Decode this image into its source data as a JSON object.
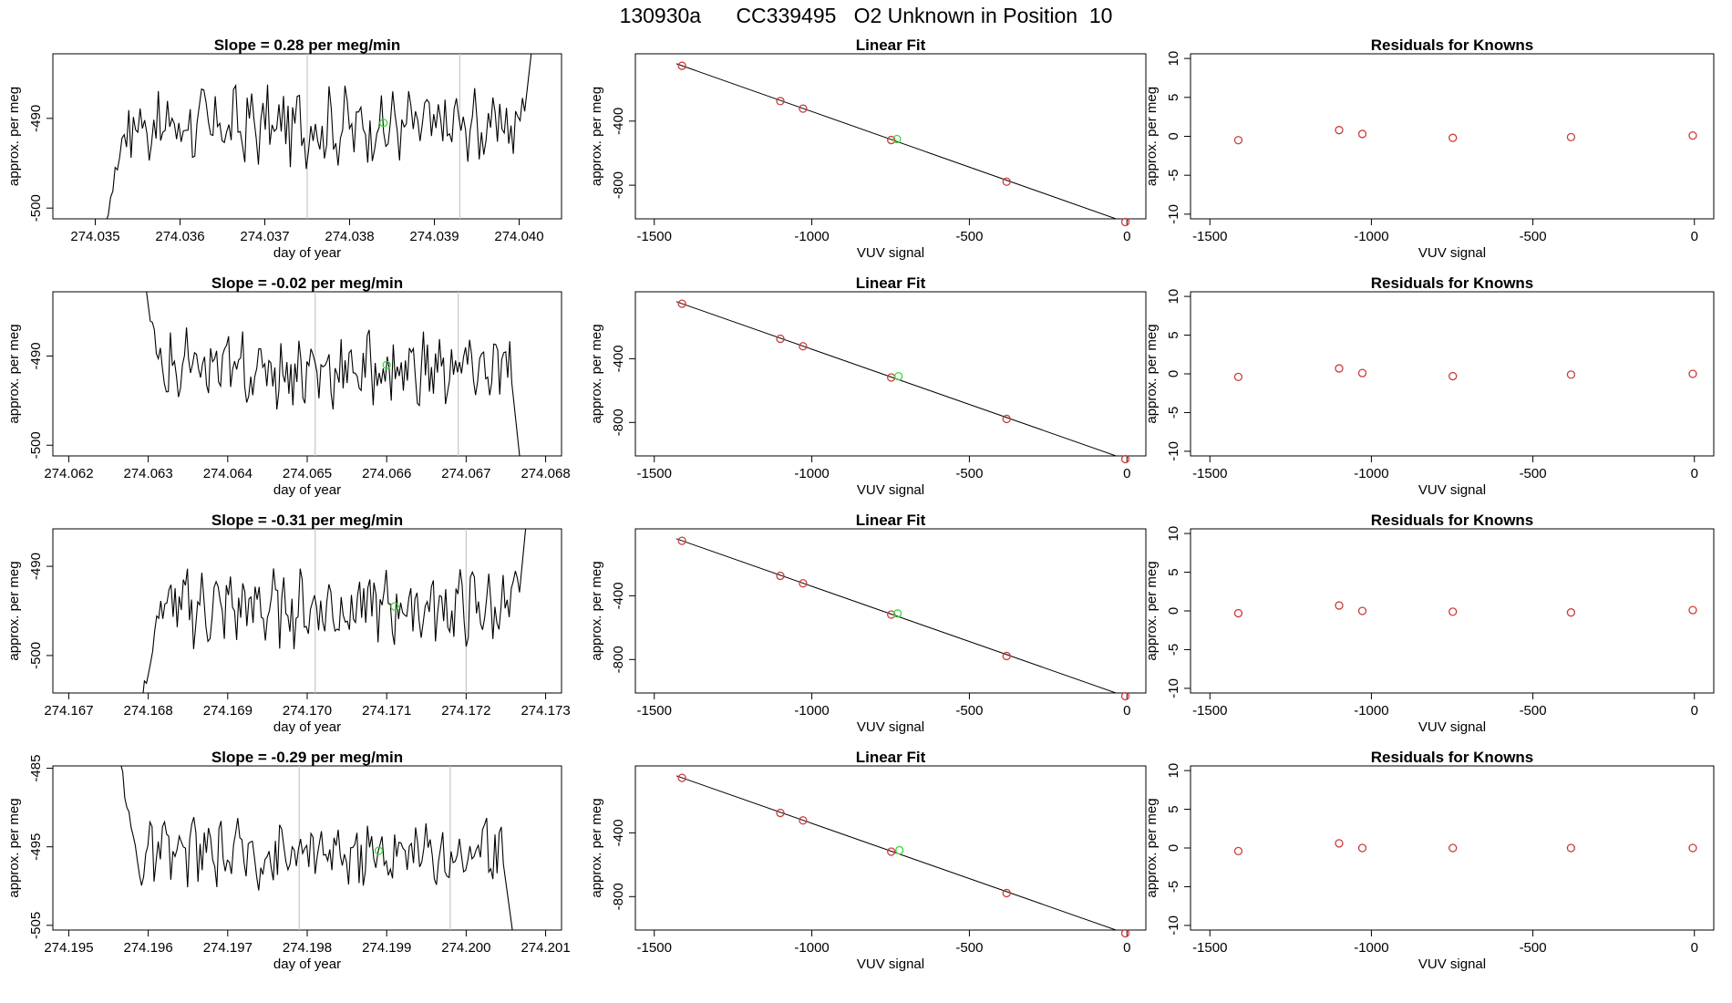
{
  "figure": {
    "title": "130930a      CC339495   O2 Unknown in Position  10"
  },
  "colors": {
    "line": "#000000",
    "known_marker": "#cd3b3b",
    "unknown_marker": "#33dd33",
    "vline": "#c8c8c8"
  },
  "chart_data": [
    {
      "type": "line",
      "panel": "timeseries",
      "row": 0,
      "title": "Slope =  0.28  per meg/min",
      "xlabel": "day of year",
      "ylabel": "approx. per meg",
      "xlim": [
        274.0345,
        274.0405
      ],
      "ylim": [
        -501.2,
        -482.8
      ],
      "xticks": [
        274.035,
        274.036,
        274.037,
        274.038,
        274.039,
        274.04
      ],
      "xtick_labels": [
        "274.035",
        "274.036",
        "274.037",
        "274.038",
        "274.039",
        "274.040"
      ],
      "yticks": [
        -500,
        -490
      ],
      "ytick_labels": [
        "-500",
        "-490"
      ],
      "vlines": [
        274.0375,
        274.0393
      ],
      "unknown_point": {
        "x": 274.0384,
        "y": -490.5
      },
      "series_start": 274.0351,
      "series_end": 274.0402,
      "mean": -490.8,
      "start_level": -502.5,
      "end_level": -478.0
    },
    {
      "type": "scatter",
      "panel": "linear_fit",
      "row": 0,
      "title": "Linear Fit",
      "xlabel": "VUV signal",
      "ylabel": "approx. per meg",
      "xlim": [
        -1560,
        60
      ],
      "ylim": [
        -1010,
        20
      ],
      "xticks": [
        -1500,
        -1000,
        -500,
        0
      ],
      "xtick_labels": [
        "-1500",
        "-1000",
        "-500",
        "0"
      ],
      "yticks": [
        -800,
        -400
      ],
      "ytick_labels": [
        "-800",
        "-400"
      ],
      "knowns": [
        {
          "x": -1412,
          "y": -55
        },
        {
          "x": -1100,
          "y": -275
        },
        {
          "x": -1028,
          "y": -322
        },
        {
          "x": -748,
          "y": -518
        },
        {
          "x": -382,
          "y": -778
        },
        {
          "x": -5,
          "y": -1030
        }
      ],
      "unknown": {
        "x": -730,
        "y": -512
      },
      "fit_line": [
        {
          "x": -1430,
          "y": -42
        },
        {
          "x": 0,
          "y": -1034
        }
      ]
    },
    {
      "type": "scatter",
      "panel": "residuals",
      "row": 0,
      "title": "Residuals for Knowns",
      "xlabel": "VUV signal",
      "ylabel": "approx. per meg",
      "xlim": [
        -1560,
        60
      ],
      "ylim": [
        -10.6,
        10.6
      ],
      "xticks": [
        -1500,
        -1000,
        -500,
        0
      ],
      "xtick_labels": [
        "-1500",
        "-1000",
        "-500",
        "0"
      ],
      "yticks": [
        -10,
        -5,
        0,
        5,
        10
      ],
      "ytick_labels": [
        "-10",
        "-5",
        "0",
        "5",
        "10"
      ],
      "points": [
        {
          "x": -1412,
          "y": -0.5
        },
        {
          "x": -1100,
          "y": 0.8
        },
        {
          "x": -1028,
          "y": 0.3
        },
        {
          "x": -748,
          "y": -0.2
        },
        {
          "x": -382,
          "y": -0.1
        },
        {
          "x": -5,
          "y": 0.1
        }
      ]
    },
    {
      "type": "line",
      "panel": "timeseries",
      "row": 1,
      "title": "Slope =  -0.02  per meg/min",
      "xlabel": "day of year",
      "ylabel": "approx. per meg",
      "xlim": [
        274.0618,
        274.0682
      ],
      "ylim": [
        -501.2,
        -482.8
      ],
      "xticks": [
        274.062,
        274.063,
        274.064,
        274.065,
        274.066,
        274.067,
        274.068
      ],
      "xtick_labels": [
        "274.062",
        "274.063",
        "274.064",
        "274.065",
        "274.066",
        "274.067",
        "274.068"
      ],
      "yticks": [
        -500,
        -490
      ],
      "ytick_labels": [
        "-500",
        "-490"
      ],
      "vlines": [
        274.0651,
        274.0669
      ],
      "unknown_point": {
        "x": 274.066,
        "y": -491.0
      },
      "series_start": 274.0629,
      "series_end": 274.0677,
      "mean": -491.5,
      "start_level": -478.0,
      "end_level": -503.5
    },
    {
      "type": "scatter",
      "panel": "linear_fit",
      "row": 1,
      "title": "Linear Fit",
      "xlabel": "VUV signal",
      "ylabel": "approx. per meg",
      "xlim": [
        -1560,
        60
      ],
      "ylim": [
        -1010,
        20
      ],
      "xticks": [
        -1500,
        -1000,
        -500,
        0
      ],
      "xtick_labels": [
        "-1500",
        "-1000",
        "-500",
        "0"
      ],
      "yticks": [
        -800,
        -400
      ],
      "ytick_labels": [
        "-800",
        "-400"
      ],
      "knowns": [
        {
          "x": -1412,
          "y": -55
        },
        {
          "x": -1100,
          "y": -275
        },
        {
          "x": -1028,
          "y": -322
        },
        {
          "x": -748,
          "y": -518
        },
        {
          "x": -382,
          "y": -778
        },
        {
          "x": -5,
          "y": -1030
        }
      ],
      "unknown": {
        "x": -725,
        "y": -510
      },
      "fit_line": [
        {
          "x": -1430,
          "y": -42
        },
        {
          "x": 0,
          "y": -1034
        }
      ]
    },
    {
      "type": "scatter",
      "panel": "residuals",
      "row": 1,
      "title": "Residuals for Knowns",
      "xlabel": "VUV signal",
      "ylabel": "approx. per meg",
      "xlim": [
        -1560,
        60
      ],
      "ylim": [
        -10.6,
        10.6
      ],
      "xticks": [
        -1500,
        -1000,
        -500,
        0
      ],
      "xtick_labels": [
        "-1500",
        "-1000",
        "-500",
        "0"
      ],
      "yticks": [
        -10,
        -5,
        0,
        5,
        10
      ],
      "ytick_labels": [
        "-10",
        "-5",
        "0",
        "5",
        "10"
      ],
      "points": [
        {
          "x": -1412,
          "y": -0.4
        },
        {
          "x": -1100,
          "y": 0.7
        },
        {
          "x": -1028,
          "y": 0.1
        },
        {
          "x": -748,
          "y": -0.3
        },
        {
          "x": -382,
          "y": -0.1
        },
        {
          "x": -5,
          "y": 0.0
        }
      ]
    },
    {
      "type": "line",
      "panel": "timeseries",
      "row": 2,
      "title": "Slope =  -0.31  per meg/min",
      "xlabel": "day of year",
      "ylabel": "approx. per meg",
      "xlim": [
        274.1668,
        274.1732
      ],
      "ylim": [
        -504.2,
        -485.8
      ],
      "xticks": [
        274.167,
        274.168,
        274.169,
        274.17,
        274.171,
        274.172,
        274.173
      ],
      "xtick_labels": [
        "274.167",
        "274.168",
        "274.169",
        "274.170",
        "274.171",
        "274.172",
        "274.173"
      ],
      "yticks": [
        -500,
        -490
      ],
      "ytick_labels": [
        "-500",
        "-490"
      ],
      "vlines": [
        274.1701,
        274.172
      ],
      "unknown_point": {
        "x": 274.1711,
        "y": -494.5
      },
      "series_start": 274.1679,
      "series_end": 274.1728,
      "mean": -494.6,
      "start_level": -506.0,
      "end_level": -481.0
    },
    {
      "type": "scatter",
      "panel": "linear_fit",
      "row": 2,
      "title": "Linear Fit",
      "xlabel": "VUV signal",
      "ylabel": "approx. per meg",
      "xlim": [
        -1560,
        60
      ],
      "ylim": [
        -1010,
        20
      ],
      "xticks": [
        -1500,
        -1000,
        -500,
        0
      ],
      "xtick_labels": [
        "-1500",
        "-1000",
        "-500",
        "0"
      ],
      "yticks": [
        -800,
        -400
      ],
      "ytick_labels": [
        "-800",
        "-400"
      ],
      "knowns": [
        {
          "x": -1412,
          "y": -55
        },
        {
          "x": -1100,
          "y": -275
        },
        {
          "x": -1028,
          "y": -322
        },
        {
          "x": -748,
          "y": -518
        },
        {
          "x": -382,
          "y": -778
        },
        {
          "x": -5,
          "y": -1030
        }
      ],
      "unknown": {
        "x": -728,
        "y": -511
      },
      "fit_line": [
        {
          "x": -1430,
          "y": -42
        },
        {
          "x": 0,
          "y": -1034
        }
      ]
    },
    {
      "type": "scatter",
      "panel": "residuals",
      "row": 2,
      "title": "Residuals for Knowns",
      "xlabel": "VUV signal",
      "ylabel": "approx. per meg",
      "xlim": [
        -1560,
        60
      ],
      "ylim": [
        -10.6,
        10.6
      ],
      "xticks": [
        -1500,
        -1000,
        -500,
        0
      ],
      "xtick_labels": [
        "-1500",
        "-1000",
        "-500",
        "0"
      ],
      "yticks": [
        -10,
        -5,
        0,
        5,
        10
      ],
      "ytick_labels": [
        "-10",
        "-5",
        "0",
        "5",
        "10"
      ],
      "points": [
        {
          "x": -1412,
          "y": -0.3
        },
        {
          "x": -1100,
          "y": 0.7
        },
        {
          "x": -1028,
          "y": 0.0
        },
        {
          "x": -748,
          "y": -0.1
        },
        {
          "x": -382,
          "y": -0.2
        },
        {
          "x": -5,
          "y": 0.1
        }
      ]
    },
    {
      "type": "line",
      "panel": "timeseries",
      "row": 3,
      "title": "Slope =  -0.29  per meg/min",
      "xlabel": "day of year",
      "ylabel": "approx. per meg",
      "xlim": [
        274.1948,
        274.2012
      ],
      "ylim": [
        -505.6,
        -484.7
      ],
      "xticks": [
        274.195,
        274.196,
        274.197,
        274.198,
        274.199,
        274.2,
        274.201
      ],
      "xtick_labels": [
        "274.195",
        "274.196",
        "274.197",
        "274.198",
        "274.199",
        "274.200",
        "274.201"
      ],
      "yticks": [
        -505,
        -495,
        -485
      ],
      "ytick_labels": [
        "-505",
        "-495",
        "-485"
      ],
      "vlines": [
        274.1979,
        274.1998
      ],
      "unknown_point": {
        "x": 274.1989,
        "y": -495.5
      },
      "series_start": 274.1956,
      "series_end": 274.2006,
      "mean": -495.8,
      "start_level": -482.0,
      "end_level": -507.0
    },
    {
      "type": "scatter",
      "panel": "linear_fit",
      "row": 3,
      "title": "Linear Fit",
      "xlabel": "VUV signal",
      "ylabel": "approx. per meg",
      "xlim": [
        -1560,
        60
      ],
      "ylim": [
        -1010,
        20
      ],
      "xticks": [
        -1500,
        -1000,
        -500,
        0
      ],
      "xtick_labels": [
        "-1500",
        "-1000",
        "-500",
        "0"
      ],
      "yticks": [
        -800,
        -400
      ],
      "ytick_labels": [
        "-800",
        "-400"
      ],
      "knowns": [
        {
          "x": -1412,
          "y": -55
        },
        {
          "x": -1100,
          "y": -275
        },
        {
          "x": -1028,
          "y": -322
        },
        {
          "x": -748,
          "y": -518
        },
        {
          "x": -382,
          "y": -778
        },
        {
          "x": -5,
          "y": -1030
        }
      ],
      "unknown": {
        "x": -722,
        "y": -509
      },
      "fit_line": [
        {
          "x": -1430,
          "y": -42
        },
        {
          "x": 0,
          "y": -1034
        }
      ]
    },
    {
      "type": "scatter",
      "panel": "residuals",
      "row": 3,
      "title": "Residuals for Knowns",
      "xlabel": "VUV signal",
      "ylabel": "approx. per meg",
      "xlim": [
        -1560,
        60
      ],
      "ylim": [
        -10.6,
        10.6
      ],
      "xticks": [
        -1500,
        -1000,
        -500,
        0
      ],
      "xtick_labels": [
        "-1500",
        "-1000",
        "-500",
        "0"
      ],
      "yticks": [
        -10,
        -5,
        0,
        5,
        10
      ],
      "ytick_labels": [
        "-10",
        "-5",
        "0",
        "5",
        "10"
      ],
      "points": [
        {
          "x": -1412,
          "y": -0.4
        },
        {
          "x": -1100,
          "y": 0.6
        },
        {
          "x": -1028,
          "y": 0.0
        },
        {
          "x": -748,
          "y": 0.0
        },
        {
          "x": -382,
          "y": 0.0
        },
        {
          "x": -5,
          "y": 0.0
        }
      ]
    }
  ]
}
